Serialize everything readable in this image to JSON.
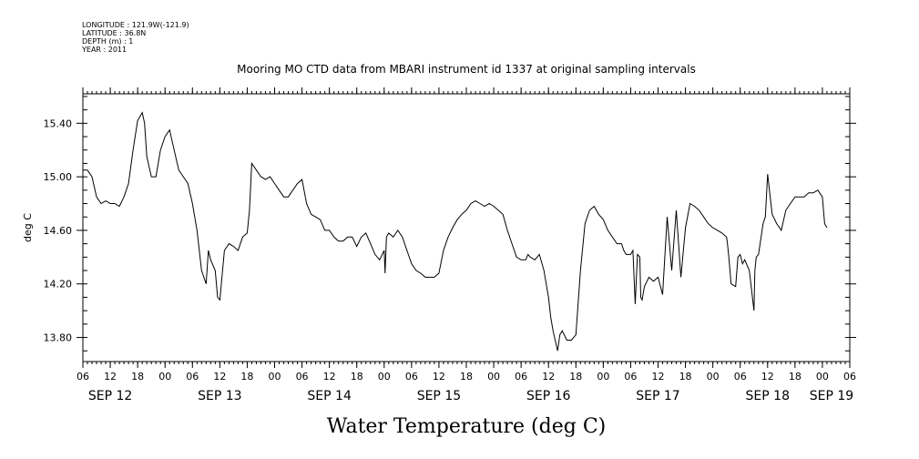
{
  "header": {
    "lines": [
      "LONGITUDE : 121.9W(-121.9)",
      "LATITUDE : 36.8N",
      "DEPTH (m) : 1",
      "YEAR : 2011"
    ],
    "plot_title": "Mooring MO CTD data from MBARI instrument id 1337 at original sampling intervals"
  },
  "chart_data": {
    "type": "line",
    "title": "Mooring MO CTD data from MBARI instrument id 1337 at original sampling intervals",
    "xlabel": "Water Temperature (deg C)",
    "ylabel": "deg C",
    "x_unit": "hours since 2011-09-12 00:00",
    "xlim": [
      6,
      174
    ],
    "ylim": [
      13.62,
      15.62
    ],
    "y_ticks": [
      13.8,
      14.2,
      14.6,
      15.0,
      15.4
    ],
    "y_tick_labels": [
      "13.80",
      "14.20",
      "14.60",
      "15.00",
      "15.40"
    ],
    "x_hour_ticks": [
      6,
      12,
      18,
      24,
      30,
      36,
      42,
      48,
      54,
      60,
      66,
      72,
      78,
      84,
      90,
      96,
      102,
      108,
      114,
      120,
      126,
      132,
      138,
      144,
      150,
      156,
      162,
      168,
      174
    ],
    "x_hour_labels": [
      "06",
      "12",
      "18",
      "00",
      "06",
      "12",
      "18",
      "00",
      "06",
      "12",
      "18",
      "00",
      "06",
      "12",
      "18",
      "00",
      "06",
      "12",
      "18",
      "00",
      "06",
      "12",
      "18",
      "00",
      "06",
      "12",
      "18",
      "00",
      "06"
    ],
    "date_labels": [
      {
        "at": 12,
        "text": "SEP 12"
      },
      {
        "at": 36,
        "text": "SEP 13"
      },
      {
        "at": 60,
        "text": "SEP 14"
      },
      {
        "at": 84,
        "text": "SEP 15"
      },
      {
        "at": 108,
        "text": "SEP 16"
      },
      {
        "at": 132,
        "text": "SEP 17"
      },
      {
        "at": 156,
        "text": "SEP 18"
      },
      {
        "at": 170,
        "text": "SEP 19"
      }
    ],
    "series": [
      {
        "x": [
          6,
          7,
          8,
          9,
          10,
          11,
          12,
          13,
          14,
          15,
          16,
          17,
          18,
          19,
          19.5,
          20,
          21,
          22,
          23,
          24,
          25,
          26,
          27,
          28,
          29,
          30,
          31,
          32,
          33,
          33.5,
          34,
          35,
          35.5,
          36,
          37,
          38,
          39,
          40,
          41,
          42,
          42.5,
          43,
          44,
          45,
          46,
          47,
          48,
          49,
          50,
          51,
          52,
          53,
          54,
          55,
          56,
          57,
          58,
          59,
          60,
          61,
          62,
          63,
          64,
          65,
          66,
          67,
          68,
          69,
          70,
          71,
          72,
          72.2,
          72.5,
          73,
          74,
          75,
          76,
          77,
          78,
          79,
          80,
          81,
          82,
          83,
          84,
          85,
          86,
          87,
          88,
          89,
          90,
          91,
          92,
          93,
          94,
          95,
          96,
          97,
          98,
          99,
          100,
          101,
          102,
          103,
          103.5,
          104,
          105,
          106,
          107,
          108,
          108.5,
          109,
          110,
          110.5,
          111,
          112,
          113,
          114,
          115,
          116,
          117,
          118,
          119,
          120,
          121,
          122,
          123,
          124,
          124.2,
          124.5,
          125,
          126,
          126.5,
          127,
          127.5,
          128,
          128.2,
          128.5,
          129,
          130,
          131,
          132,
          133,
          134,
          135,
          136,
          137,
          138,
          139,
          140,
          141,
          142,
          143,
          144,
          145,
          146,
          147,
          147.2,
          147.5,
          148,
          149,
          149.5,
          150,
          150.5,
          151,
          152,
          153,
          153.2,
          153.5,
          154,
          155,
          155.5,
          156,
          157,
          158,
          159,
          160,
          161,
          162,
          163,
          164,
          165,
          166,
          167,
          168,
          168.5,
          169
        ],
        "values": [
          15.05,
          15.05,
          15.0,
          14.85,
          14.8,
          14.82,
          14.8,
          14.8,
          14.78,
          14.85,
          14.95,
          15.2,
          15.42,
          15.48,
          15.4,
          15.15,
          15.0,
          15.0,
          15.2,
          15.3,
          15.35,
          15.2,
          15.05,
          15.0,
          14.95,
          14.8,
          14.6,
          14.3,
          14.2,
          14.45,
          14.38,
          14.3,
          14.1,
          14.08,
          14.45,
          14.5,
          14.48,
          14.45,
          14.55,
          14.58,
          14.75,
          15.1,
          15.05,
          15.0,
          14.98,
          15.0,
          14.95,
          14.9,
          14.85,
          14.85,
          14.9,
          14.95,
          14.98,
          14.8,
          14.72,
          14.7,
          14.68,
          14.6,
          14.6,
          14.55,
          14.52,
          14.52,
          14.55,
          14.55,
          14.48,
          14.55,
          14.58,
          14.5,
          14.42,
          14.38,
          14.45,
          14.28,
          14.55,
          14.58,
          14.55,
          14.6,
          14.55,
          14.45,
          14.35,
          14.3,
          14.28,
          14.25,
          14.25,
          14.25,
          14.28,
          14.45,
          14.55,
          14.62,
          14.68,
          14.72,
          14.75,
          14.8,
          14.82,
          14.8,
          14.78,
          14.8,
          14.78,
          14.75,
          14.72,
          14.6,
          14.5,
          14.4,
          14.38,
          14.38,
          14.42,
          14.4,
          14.38,
          14.42,
          14.3,
          14.1,
          13.95,
          13.85,
          13.7,
          13.82,
          13.85,
          13.78,
          13.78,
          13.82,
          14.3,
          14.65,
          14.75,
          14.78,
          14.72,
          14.68,
          14.6,
          14.55,
          14.5,
          14.5,
          14.48,
          14.45,
          14.42,
          14.42,
          14.45,
          14.05,
          14.42,
          14.4,
          14.1,
          14.08,
          14.18,
          14.25,
          14.22,
          14.25,
          14.12,
          14.7,
          14.3,
          14.75,
          14.25,
          14.62,
          14.8,
          14.78,
          14.75,
          14.7,
          14.65,
          14.62,
          14.6,
          14.58,
          14.55,
          14.5,
          14.4,
          14.2,
          14.18,
          14.4,
          14.42,
          14.35,
          14.38,
          14.3,
          14.0,
          14.3,
          14.4,
          14.42,
          14.65,
          14.7,
          15.02,
          14.72,
          14.65,
          14.6,
          14.75,
          14.8,
          14.85,
          14.85,
          14.85,
          14.88,
          14.88,
          14.9,
          14.85,
          14.65,
          14.62
        ]
      }
    ],
    "grid": false,
    "legend": "none"
  }
}
